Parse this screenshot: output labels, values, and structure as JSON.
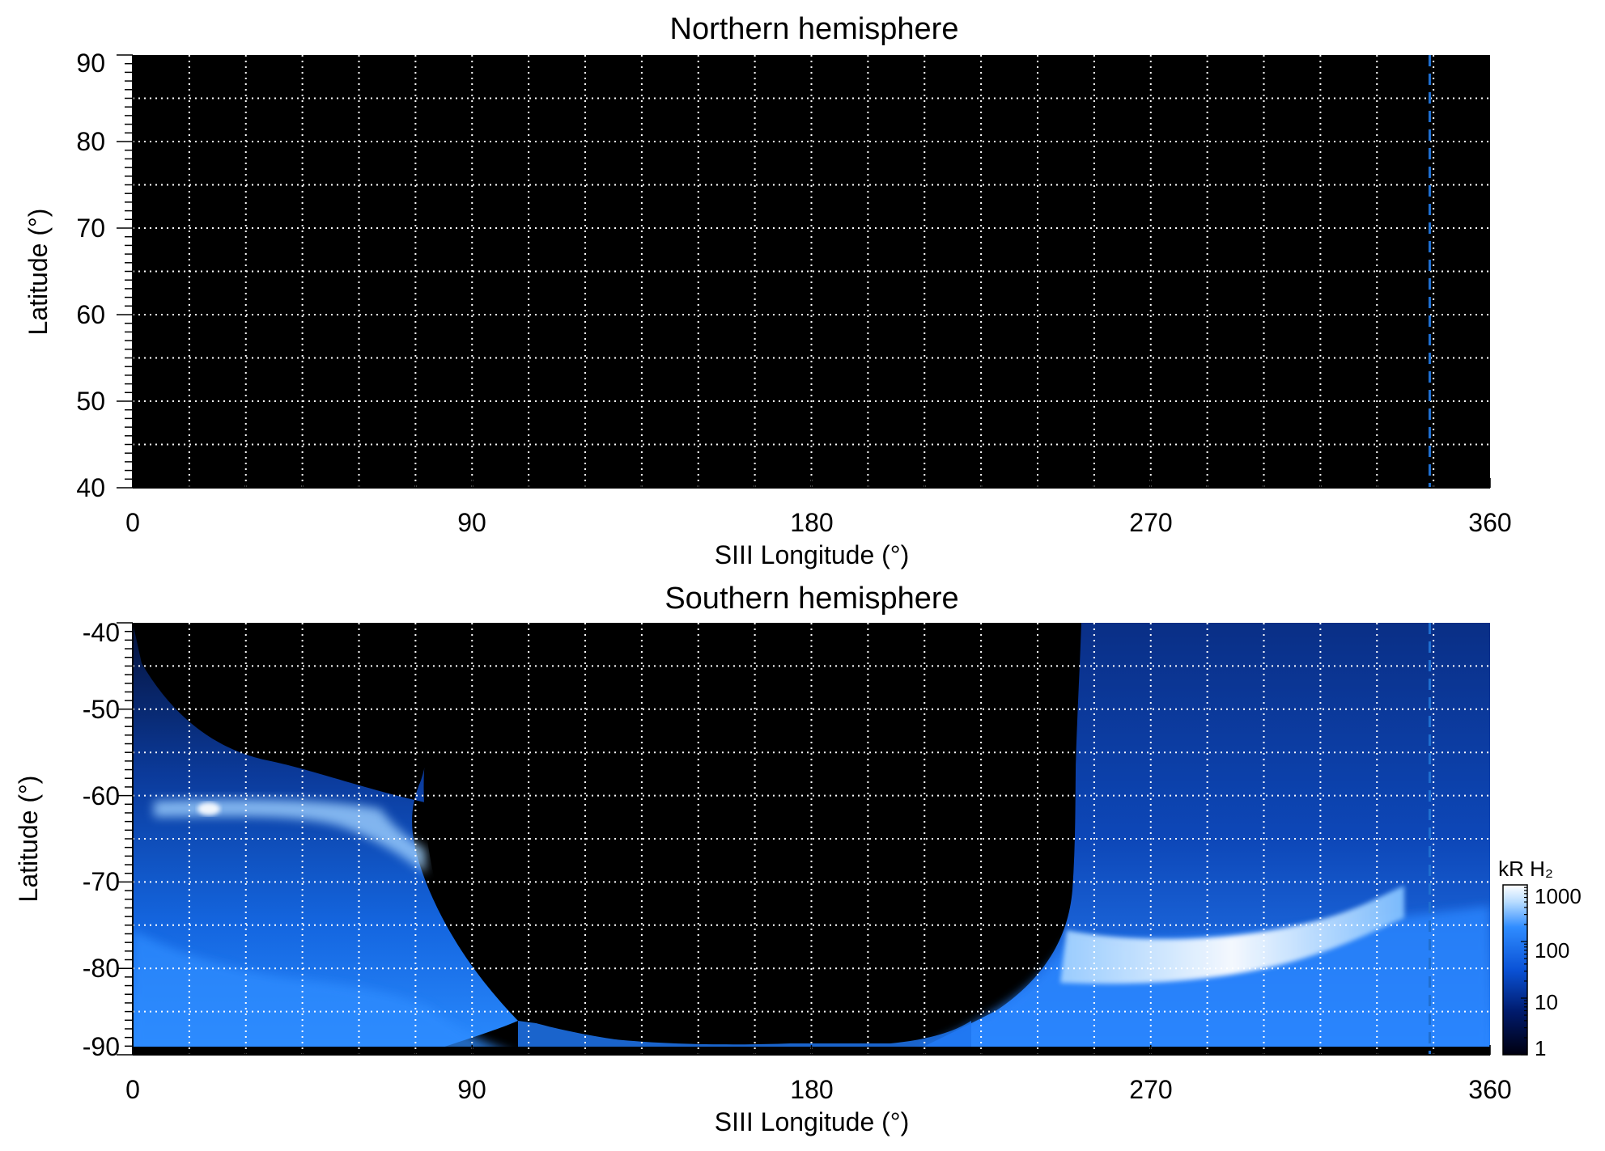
{
  "chart_data": [
    {
      "type": "heatmap",
      "title": "Northern hemisphere",
      "xlabel": "SIII Longitude (°)",
      "ylabel": "Latitude (°)",
      "xlim": [
        0,
        360
      ],
      "ylim": [
        40,
        90
      ],
      "xticks": [
        "0",
        "90",
        "180",
        "270",
        "360"
      ],
      "yticks": [
        "40",
        "50",
        "60",
        "70",
        "80",
        "90"
      ],
      "grid": true,
      "grid_style": "dotted white",
      "grid_x_step": 15,
      "grid_y_step": 5,
      "background": "#000000",
      "emission": "none",
      "reference_line": {
        "longitude": 344,
        "color": "#1f6fd0",
        "style": "dashed"
      }
    },
    {
      "type": "heatmap",
      "title": "Southern hemisphere",
      "xlabel": "SIII Longitude (°)",
      "ylabel": "Latitude (°)",
      "xlim": [
        0,
        360
      ],
      "ylim": [
        -90,
        -40
      ],
      "xticks": [
        "0",
        "90",
        "180",
        "270",
        "360"
      ],
      "yticks": [
        "-40",
        "-50",
        "-60",
        "-70",
        "-80",
        "-90"
      ],
      "grid": true,
      "grid_style": "dotted white",
      "grid_x_step": 15,
      "grid_y_step": 5,
      "background": "#000000",
      "reference_line": {
        "longitude": 344,
        "color": "#1f6fd0",
        "style": "dashed"
      },
      "no_data_region": {
        "lon_range": [
          78,
          252
        ],
        "description": "unobserved"
      },
      "regions": [
        {
          "lon": [
            0,
            80
          ],
          "lat": [
            -90,
            -40
          ],
          "level_kR": 100
        },
        {
          "lon": [
            55,
            78
          ],
          "lat": [
            -70,
            -62
          ],
          "level_kR": 400
        },
        {
          "lon": [
            18,
            24
          ],
          "lat": [
            -63,
            -61
          ],
          "level_kR": 1000
        },
        {
          "lon": [
            250,
            360
          ],
          "lat": [
            -90,
            -40
          ],
          "level_kR": 100
        },
        {
          "lon": [
            250,
            320
          ],
          "lat": [
            -82,
            -75
          ],
          "level_kR": 1000
        }
      ],
      "colorbar": {
        "label": "kR H₂",
        "scale": "log",
        "ticks": [
          "1000",
          "100",
          "10",
          "1"
        ],
        "range": [
          1,
          1000
        ],
        "colors": [
          "#000010",
          "#001a6b",
          "#0a52d6",
          "#2f8cff",
          "#b8dcff",
          "#ffffff"
        ]
      }
    }
  ]
}
